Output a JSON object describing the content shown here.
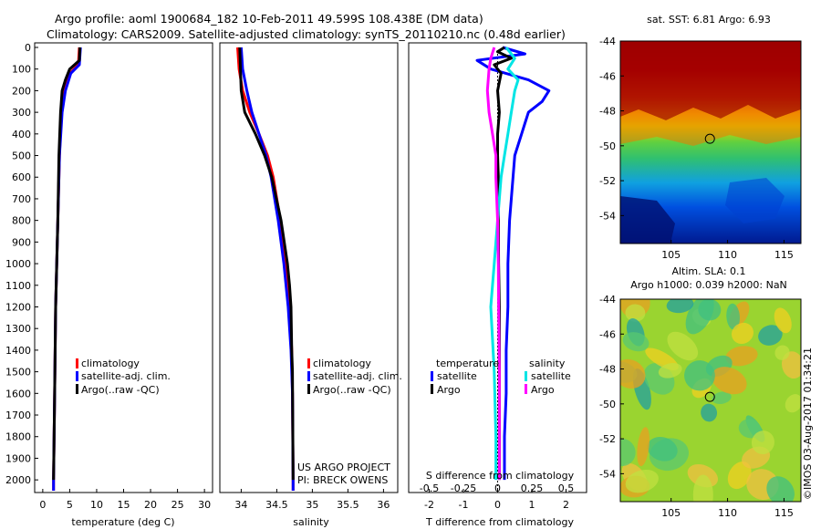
{
  "header": {
    "title_line1": "Argo profile: aoml 1900684_182 10-Feb-2011 49.599S 108.438E (DM data)",
    "title_line2": "Climatology: CARS2009. Satellite-adjusted climatology: synTS_20110210.nc (0.48d earlier)"
  },
  "colors": {
    "climatology": "#ff0000",
    "satellite": "#0000ff",
    "argo": "#000000",
    "sal_satellite": "#00e5e5",
    "sal_argo": "#ff00ff"
  },
  "pressure_ticks": [
    "0",
    "100",
    "200",
    "300",
    "400",
    "500",
    "600",
    "700",
    "800",
    "900",
    "1000",
    "1100",
    "1200",
    "1300",
    "1400",
    "1500",
    "1600",
    "1700",
    "1800",
    "1900",
    "2000"
  ],
  "chart_data": [
    {
      "type": "line",
      "xlabel": "temperature (deg C)",
      "xlim": [
        -1.5,
        31.5
      ],
      "ylim": [
        2050,
        0
      ],
      "xticks": [
        "0",
        "5",
        "10",
        "15",
        "20",
        "25",
        "30"
      ],
      "legend": [
        "climatology",
        "satellite-adj. clim.",
        "Argo(..raw -QC)"
      ],
      "series": [
        {
          "name": "climatology",
          "depth": [
            0,
            80,
            120,
            200,
            300,
            500,
            800,
            1200,
            1600,
            2000,
            2050
          ],
          "values": [
            6.8,
            6.6,
            5.0,
            3.8,
            3.4,
            3.1,
            2.8,
            2.4,
            2.2,
            2.0,
            2.0
          ]
        },
        {
          "name": "satellite-adj. clim.",
          "depth": [
            0,
            80,
            120,
            200,
            300,
            500,
            800,
            1200,
            1600,
            2000,
            2050
          ],
          "values": [
            7.0,
            6.8,
            5.2,
            4.2,
            3.6,
            3.1,
            2.8,
            2.4,
            2.2,
            2.0,
            2.0
          ]
        },
        {
          "name": "Argo(..raw -QC)",
          "depth": [
            0,
            60,
            100,
            150,
            200,
            300,
            500,
            800,
            1200,
            1600,
            2000
          ],
          "values": [
            6.9,
            6.8,
            5.0,
            4.2,
            3.6,
            3.3,
            3.0,
            2.8,
            2.4,
            2.2,
            2.0
          ]
        }
      ]
    },
    {
      "type": "line",
      "xlabel": "salinity",
      "xlim": [
        33.7,
        36.2
      ],
      "ylim": [
        2050,
        0
      ],
      "xticks": [
        "34",
        "34.5",
        "35",
        "35.5",
        "36"
      ],
      "legend": [
        "climatology",
        "satellite-adj. clim.",
        "Argo(..raw -QC)"
      ],
      "annotation": [
        "US ARGO PROJECT",
        "PI: BRECK OWENS"
      ],
      "series": [
        {
          "name": "climatology",
          "depth": [
            0,
            100,
            200,
            300,
            400,
            500,
            600,
            800,
            1000,
            1200,
            1400,
            1600,
            2000,
            2050
          ],
          "values": [
            33.95,
            33.97,
            34.02,
            34.12,
            34.25,
            34.37,
            34.45,
            34.55,
            34.63,
            34.68,
            34.71,
            34.72,
            34.73,
            34.73
          ]
        },
        {
          "name": "satellite-adj. clim.",
          "depth": [
            0,
            100,
            200,
            300,
            400,
            500,
            600,
            800,
            1000,
            1200,
            1400,
            1600,
            2000,
            2050
          ],
          "values": [
            34.0,
            34.02,
            34.08,
            34.15,
            34.25,
            34.35,
            34.42,
            34.52,
            34.6,
            34.66,
            34.7,
            34.72,
            34.73,
            34.73
          ]
        },
        {
          "name": "Argo(..raw -QC)",
          "depth": [
            0,
            100,
            200,
            300,
            400,
            500,
            600,
            800,
            1000,
            1100,
            1200,
            1400,
            1500,
            2000
          ],
          "values": [
            33.98,
            33.99,
            34.0,
            34.05,
            34.2,
            34.33,
            34.43,
            34.56,
            34.65,
            34.68,
            34.7,
            34.71,
            34.72,
            34.73
          ]
        }
      ]
    },
    {
      "type": "line",
      "xlabel": "T difference from climatology",
      "xlabel_top": "S difference from climatology",
      "xlim": [
        -2.6,
        2.6
      ],
      "ylim": [
        2050,
        0
      ],
      "xticks": [
        "-2",
        "-1",
        "0",
        "1",
        "2"
      ],
      "xticks_top": [
        {
          "label": "-0.5",
          "value": -2
        },
        {
          "label": "-0.25",
          "value": -1
        },
        {
          "label": "0",
          "value": 0
        },
        {
          "label": "0.25",
          "value": 1
        },
        {
          "label": "0.5",
          "value": 2
        }
      ],
      "legend": {
        "temperature": [
          "satellite",
          "Argo"
        ],
        "salinity": [
          "satellite",
          "Argo"
        ]
      },
      "series": [
        {
          "name": "satellite",
          "group": "temperature",
          "depth": [
            0,
            30,
            60,
            100,
            150,
            200,
            250,
            300,
            350,
            400,
            500,
            600,
            700,
            800,
            1000,
            1200,
            1400,
            1600,
            1800,
            2000
          ],
          "values": [
            0.15,
            0.8,
            -0.6,
            -0.2,
            0.9,
            1.5,
            1.3,
            0.9,
            0.8,
            0.7,
            0.5,
            0.45,
            0.4,
            0.35,
            0.3,
            0.3,
            0.25,
            0.25,
            0.2,
            0.2
          ]
        },
        {
          "name": "Argo",
          "group": "temperature",
          "depth": [
            0,
            20,
            50,
            80,
            120,
            200,
            300,
            400,
            500,
            600,
            800,
            1000,
            1200,
            1500,
            1800,
            2000
          ],
          "values": [
            0.2,
            0.0,
            0.4,
            -0.1,
            0.1,
            0.0,
            0.05,
            0.0,
            0.0,
            0.02,
            0.02,
            0.03,
            0.05,
            0.05,
            0.05,
            0.05
          ]
        },
        {
          "name": "satellite",
          "group": "salinity",
          "depth": [
            0,
            50,
            100,
            150,
            200,
            300,
            400,
            500,
            600,
            800,
            1000,
            1200,
            1500,
            1800,
            2000
          ],
          "values": [
            0.25,
            0.5,
            0.3,
            0.6,
            0.5,
            0.4,
            0.3,
            0.2,
            0.1,
            0.0,
            -0.1,
            -0.2,
            -0.1,
            -0.05,
            -0.05
          ]
        },
        {
          "name": "Argo",
          "group": "salinity",
          "depth": [
            0,
            50,
            100,
            200,
            300,
            400,
            500,
            600,
            800,
            1000,
            1200,
            1500,
            1800,
            2000
          ],
          "values": [
            -0.1,
            -0.2,
            -0.25,
            -0.3,
            -0.25,
            -0.15,
            -0.05,
            -0.05,
            0.0,
            0.02,
            0.03,
            0.05,
            0.05,
            0.05
          ]
        }
      ]
    },
    {
      "type": "heatmap",
      "title": "sat. SST: 6.81 Argo: 6.93",
      "xlim": [
        100.5,
        116.5
      ],
      "ylim": [
        -55.6,
        -44
      ],
      "xticks": [
        "105",
        "110",
        "115"
      ],
      "yticks": [
        "-44",
        "-46",
        "-48",
        "-50",
        "-52",
        "-54"
      ],
      "marker": {
        "lon": 108.438,
        "lat": -49.599
      }
    },
    {
      "type": "heatmap",
      "title_line1": "Altim. SLA: 0.1",
      "title_line2": "Argo h1000: 0.039 h2000: NaN",
      "xlim": [
        100.5,
        116.5
      ],
      "ylim": [
        -55.6,
        -44
      ],
      "xticks": [
        "105",
        "110",
        "115"
      ],
      "yticks": [
        "-44",
        "-46",
        "-48",
        "-50",
        "-52",
        "-54"
      ],
      "marker": {
        "lon": 108.438,
        "lat": -49.599
      }
    }
  ],
  "footer": {
    "stamp": "©IMOS 03-Aug-2017 01:34:21"
  }
}
